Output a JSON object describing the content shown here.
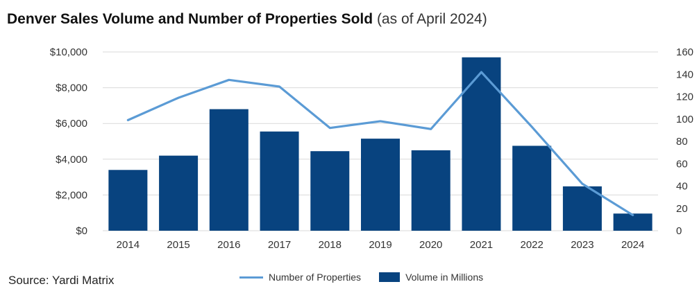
{
  "title": {
    "main": "Denver Sales Volume and Number of Properties Sold",
    "sub": "(as of April 2024)"
  },
  "source": "Source: Yardi Matrix",
  "colors": {
    "bar": "#08437f",
    "line": "#5b9bd5",
    "grid": "#d9d9d9",
    "axis_text": "#333333"
  },
  "chart_data": {
    "type": "bar",
    "categories": [
      "2014",
      "2015",
      "2016",
      "2017",
      "2018",
      "2019",
      "2020",
      "2021",
      "2022",
      "2023",
      "2024"
    ],
    "series": [
      {
        "name": "Volume in Millions",
        "type": "bar",
        "axis": "left",
        "values": [
          3400,
          4200,
          6800,
          5550,
          4450,
          5150,
          4500,
          9700,
          4750,
          2480,
          960
        ]
      },
      {
        "name": "Number of Properties",
        "type": "line",
        "axis": "right",
        "values": [
          99,
          119,
          135,
          129,
          92,
          98,
          91,
          142,
          93,
          42,
          14
        ]
      }
    ],
    "left_axis": {
      "ylim": [
        0,
        10000
      ],
      "ticks": [
        0,
        2000,
        4000,
        6000,
        8000,
        10000
      ],
      "tick_labels": [
        "$0",
        "$2,000",
        "$4,000",
        "$6,000",
        "$8,000",
        "$10,000"
      ]
    },
    "right_axis": {
      "ylim": [
        0,
        160
      ],
      "ticks": [
        0,
        20,
        40,
        60,
        80,
        100,
        120,
        140,
        160
      ],
      "tick_labels": [
        "0",
        "20",
        "40",
        "60",
        "80",
        "100",
        "120",
        "140",
        "160"
      ]
    },
    "grid": true,
    "legend_position": "bottom"
  }
}
